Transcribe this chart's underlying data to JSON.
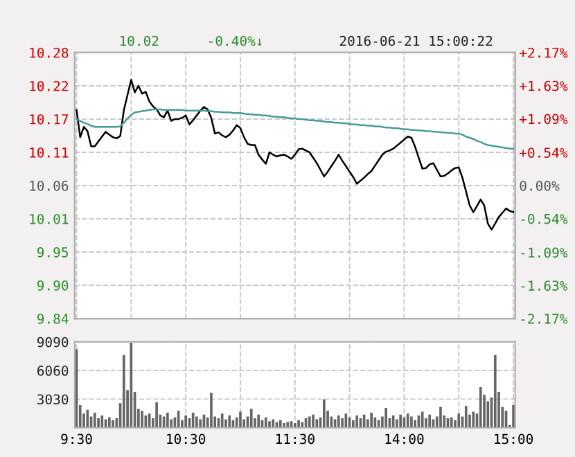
{
  "chart_data": [
    {
      "type": "line",
      "annotations": [
        "10.02",
        "-0.40%↓",
        "2016-06-21 15:00:22"
      ],
      "series": [
        {
          "color": "#000000",
          "values": [
            10.185,
            10.14,
            10.157,
            10.15,
            10.125,
            10.125,
            10.133,
            10.141,
            10.149,
            10.144,
            10.14,
            10.138,
            10.142,
            10.185,
            10.21,
            10.235,
            10.214,
            10.225,
            10.212,
            10.215,
            10.199,
            10.191,
            10.186,
            10.176,
            10.173,
            10.184,
            10.167,
            10.17,
            10.17,
            10.172,
            10.176,
            10.161,
            10.168,
            10.176,
            10.184,
            10.19,
            10.186,
            10.172,
            10.146,
            10.148,
            10.143,
            10.14,
            10.144,
            10.151,
            10.16,
            10.155,
            10.14,
            10.129,
            10.127,
            10.127,
            10.111,
            10.103,
            10.096,
            10.115,
            10.111,
            10.108,
            10.11,
            10.111,
            10.108,
            10.104,
            10.111,
            10.12,
            10.121,
            10.118,
            10.115,
            10.106,
            10.097,
            10.086,
            10.075,
            10.083,
            10.092,
            10.101,
            10.111,
            10.101,
            10.092,
            10.083,
            10.074,
            10.063,
            10.068,
            10.073,
            10.079,
            10.084,
            10.093,
            10.102,
            10.111,
            10.116,
            10.118,
            10.121,
            10.126,
            10.131,
            10.136,
            10.141,
            10.139,
            10.124,
            10.106,
            10.088,
            10.089,
            10.095,
            10.097,
            10.086,
            10.075,
            10.076,
            10.08,
            10.085,
            10.089,
            10.09,
            10.073,
            10.05,
            10.027,
            10.016,
            10.026,
            10.037,
            10.027,
            9.997,
            9.987,
            9.997,
            10.008,
            10.015,
            10.022,
            10.018,
            10.016
          ]
        },
        {
          "color": "#4a9a96",
          "values": [
            10.17,
            10.167,
            10.164,
            10.162,
            10.159,
            10.157,
            10.157,
            10.157,
            10.157,
            10.157,
            10.157,
            10.157,
            10.158,
            10.164,
            10.171,
            10.177,
            10.181,
            10.182,
            10.183,
            10.184,
            10.185,
            10.186,
            10.186,
            10.186,
            10.185,
            10.185,
            10.185,
            10.185,
            10.185,
            10.185,
            10.184,
            10.184,
            10.184,
            10.184,
            10.184,
            10.184,
            10.183,
            10.183,
            10.182,
            10.182,
            10.181,
            10.181,
            10.181,
            10.18,
            10.18,
            10.18,
            10.179,
            10.178,
            10.178,
            10.177,
            10.177,
            10.176,
            10.176,
            10.175,
            10.174,
            10.174,
            10.173,
            10.173,
            10.172,
            10.171,
            10.171,
            10.17,
            10.17,
            10.169,
            10.168,
            10.168,
            10.167,
            10.167,
            10.166,
            10.165,
            10.165,
            10.164,
            10.164,
            10.163,
            10.163,
            10.162,
            10.161,
            10.161,
            10.16,
            10.16,
            10.159,
            10.159,
            10.158,
            10.158,
            10.157,
            10.156,
            10.156,
            10.155,
            10.155,
            10.154,
            10.153,
            10.153,
            10.152,
            10.152,
            10.151,
            10.151,
            10.15,
            10.15,
            10.149,
            10.149,
            10.148,
            10.148,
            10.147,
            10.147,
            10.146,
            10.146,
            10.144,
            10.141,
            10.139,
            10.137,
            10.134,
            10.132,
            10.129,
            10.127,
            10.126,
            10.125,
            10.124,
            10.123,
            10.122,
            10.121,
            10.121
          ]
        }
      ],
      "ylim": [
        9.84,
        10.28
      ],
      "yticks": [
        9.84,
        {
          "value": 9.895,
          "label": "9.90"
        },
        9.95,
        {
          "value": 10.005,
          "label": "10.01"
        },
        10.06,
        {
          "value": 10.115,
          "label": "10.11"
        },
        10.17,
        {
          "value": 10.225,
          "label": "10.22"
        },
        10.28
      ],
      "y2lim": [
        -2.17,
        2.17
      ],
      "y2ticks": [
        {
          "value": -2.17,
          "label": "-2.17%"
        },
        {
          "value": -1.63,
          "label": "-1.63%"
        },
        {
          "value": -1.09,
          "label": "-1.09%"
        },
        {
          "value": -0.54,
          "label": "-0.54%"
        },
        {
          "value": 0,
          "label": "0.00%"
        },
        {
          "value": 0.54,
          "label": "+0.54%"
        },
        {
          "value": 1.09,
          "label": "+1.09%"
        },
        {
          "value": 1.63,
          "label": "+1.63%"
        },
        {
          "value": 2.17,
          "label": "+2.17%"
        }
      ],
      "tick_labels": "y",
      "grid": true,
      "line_style": "solid"
    },
    {
      "type": "bar",
      "color": "#666666",
      "categories": [
        "9:30",
        null,
        null,
        null,
        null,
        null,
        null,
        null,
        null,
        null,
        null,
        null,
        null,
        null,
        null,
        null,
        null,
        null,
        null,
        null,
        null,
        null,
        null,
        null,
        null,
        null,
        null,
        null,
        null,
        null,
        "10:30",
        null,
        null,
        null,
        null,
        null,
        null,
        null,
        null,
        null,
        null,
        null,
        null,
        null,
        null,
        null,
        null,
        null,
        null,
        null,
        null,
        null,
        null,
        null,
        null,
        null,
        null,
        null,
        null,
        null,
        "11:30",
        null,
        null,
        null,
        null,
        null,
        null,
        null,
        null,
        null,
        null,
        null,
        null,
        null,
        null,
        null,
        null,
        null,
        null,
        null,
        null,
        null,
        null,
        null,
        null,
        null,
        null,
        null,
        null,
        null,
        "14:00",
        null,
        null,
        null,
        null,
        null,
        null,
        null,
        null,
        null,
        null,
        null,
        null,
        null,
        null,
        null,
        null,
        null,
        null,
        null,
        null,
        null,
        null,
        null,
        null,
        null,
        null,
        null,
        null,
        null,
        "15:00"
      ],
      "values": [
        8300,
        2400,
        1500,
        1900,
        1200,
        1600,
        1000,
        1300,
        900,
        1100,
        800,
        1000,
        2600,
        7700,
        4000,
        9000,
        3800,
        2000,
        1800,
        1300,
        1500,
        1000,
        2700,
        1400,
        1200,
        1600,
        900,
        1100,
        1800,
        800,
        1300,
        1000,
        1600,
        1200,
        900,
        1400,
        1100,
        3700,
        1200,
        1000,
        1500,
        900,
        1300,
        800,
        1100,
        1700,
        900,
        1200,
        2000,
        1000,
        1400,
        800,
        1100,
        700,
        900,
        600,
        800,
        500,
        600,
        700,
        500,
        800,
        600,
        1000,
        1200,
        1400,
        900,
        1100,
        3000,
        1800,
        1200,
        900,
        1300,
        1000,
        1500,
        1100,
        800,
        1300,
        1000,
        1400,
        900,
        1600,
        1100,
        800,
        1200,
        2100,
        1000,
        1300,
        900,
        1400,
        1100,
        1500,
        1200,
        800,
        1300,
        1700,
        1000,
        1400,
        900,
        1200,
        2200,
        1300,
        1000,
        1100,
        800,
        1500,
        1200,
        2300,
        1400,
        1700,
        1500,
        4300,
        3500,
        2800,
        3200,
        7700,
        3800,
        2200,
        1800,
        300,
        2400
      ],
      "ylim": [
        0,
        9090
      ],
      "yticks": [
        3030,
        6060,
        9090
      ],
      "grid": true
    }
  ]
}
